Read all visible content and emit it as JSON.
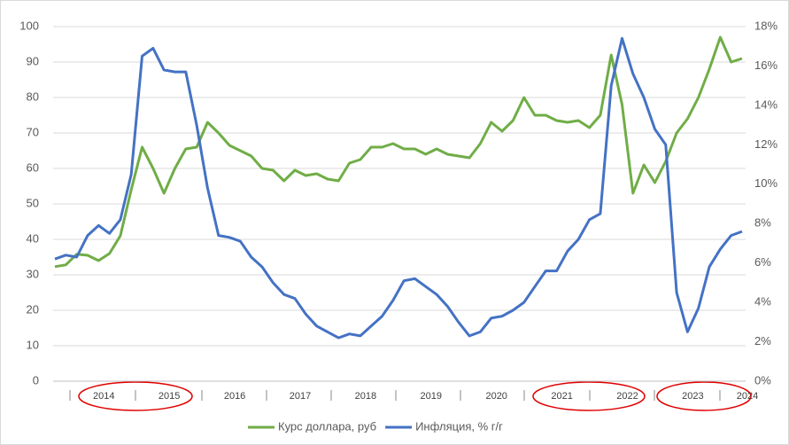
{
  "chart_data": {
    "type": "line",
    "categories": [
      null,
      null,
      null,
      null,
      "2014",
      null,
      null,
      null,
      null,
      null,
      "2015",
      null,
      null,
      null,
      null,
      null,
      "2016",
      null,
      null,
      null,
      null,
      null,
      "2017",
      null,
      null,
      null,
      null,
      null,
      "2018",
      null,
      null,
      null,
      null,
      null,
      "2019",
      null,
      null,
      null,
      null,
      null,
      "2020",
      null,
      null,
      null,
      null,
      null,
      "2021",
      null,
      null,
      null,
      null,
      null,
      "2022",
      null,
      null,
      null,
      null,
      null,
      "2023",
      null,
      null,
      null,
      null,
      "2024"
    ],
    "series": [
      {
        "name": "Курс доллара, руб",
        "color": "#70ad47",
        "values": [
          32.3,
          32.8,
          35.8,
          35.5,
          34,
          36,
          41,
          54,
          66,
          60,
          53,
          60,
          65.5,
          66,
          73,
          70,
          66.5,
          65,
          63.5,
          60,
          59.5,
          56.5,
          59.5,
          58,
          58.5,
          57,
          56.5,
          61.5,
          62.5,
          66,
          66,
          67,
          65.5,
          65.5,
          64,
          65.5,
          64,
          63.5,
          63,
          67,
          73,
          70.5,
          73.5,
          80,
          75,
          75,
          73.5,
          73,
          73.5,
          71.5,
          75,
          92,
          78,
          53,
          61,
          56,
          62,
          70,
          74,
          80,
          88,
          97,
          90,
          91
        ]
      },
      {
        "name": "Инфляция, % г/г",
        "color": "#4472c4",
        "axis": "y2",
        "values": [
          6.2,
          6.4,
          6.3,
          7.4,
          7.9,
          7.5,
          8.2,
          10.5,
          16.5,
          16.9,
          15.8,
          15.7,
          15.7,
          13.0,
          9.8,
          7.4,
          7.3,
          7.1,
          6.3,
          5.8,
          5.0,
          4.4,
          4.2,
          3.4,
          2.8,
          2.5,
          2.2,
          2.4,
          2.3,
          2.8,
          3.3,
          4.1,
          5.1,
          5.2,
          4.8,
          4.4,
          3.8,
          3.0,
          2.3,
          2.5,
          3.2,
          3.3,
          3.6,
          4.0,
          4.8,
          5.6,
          5.6,
          6.6,
          7.2,
          8.2,
          8.5,
          15.0,
          17.4,
          15.6,
          14.4,
          12.8,
          12.0,
          4.5,
          2.5,
          3.7,
          5.8,
          6.7,
          7.4,
          7.6
        ]
      }
    ],
    "ylim": [
      0,
      100
    ],
    "yticks": [
      0,
      10,
      20,
      30,
      40,
      50,
      60,
      70,
      80,
      90,
      100
    ],
    "y2lim": [
      0,
      18
    ],
    "y2ticks": [
      {
        "value": 0,
        "label": "0%"
      },
      {
        "value": 2,
        "label": "2%"
      },
      {
        "value": 4,
        "label": "4%"
      },
      {
        "value": 6,
        "label": "6%"
      },
      {
        "value": 8,
        "label": "8%"
      },
      {
        "value": 10,
        "label": "10%"
      },
      {
        "value": 12,
        "label": "12%"
      },
      {
        "value": 14,
        "label": "14%"
      },
      {
        "value": 16,
        "label": "16%"
      },
      {
        "value": 18,
        "label": "18%"
      }
    ],
    "grid": true,
    "legend": "bottom"
  }
}
